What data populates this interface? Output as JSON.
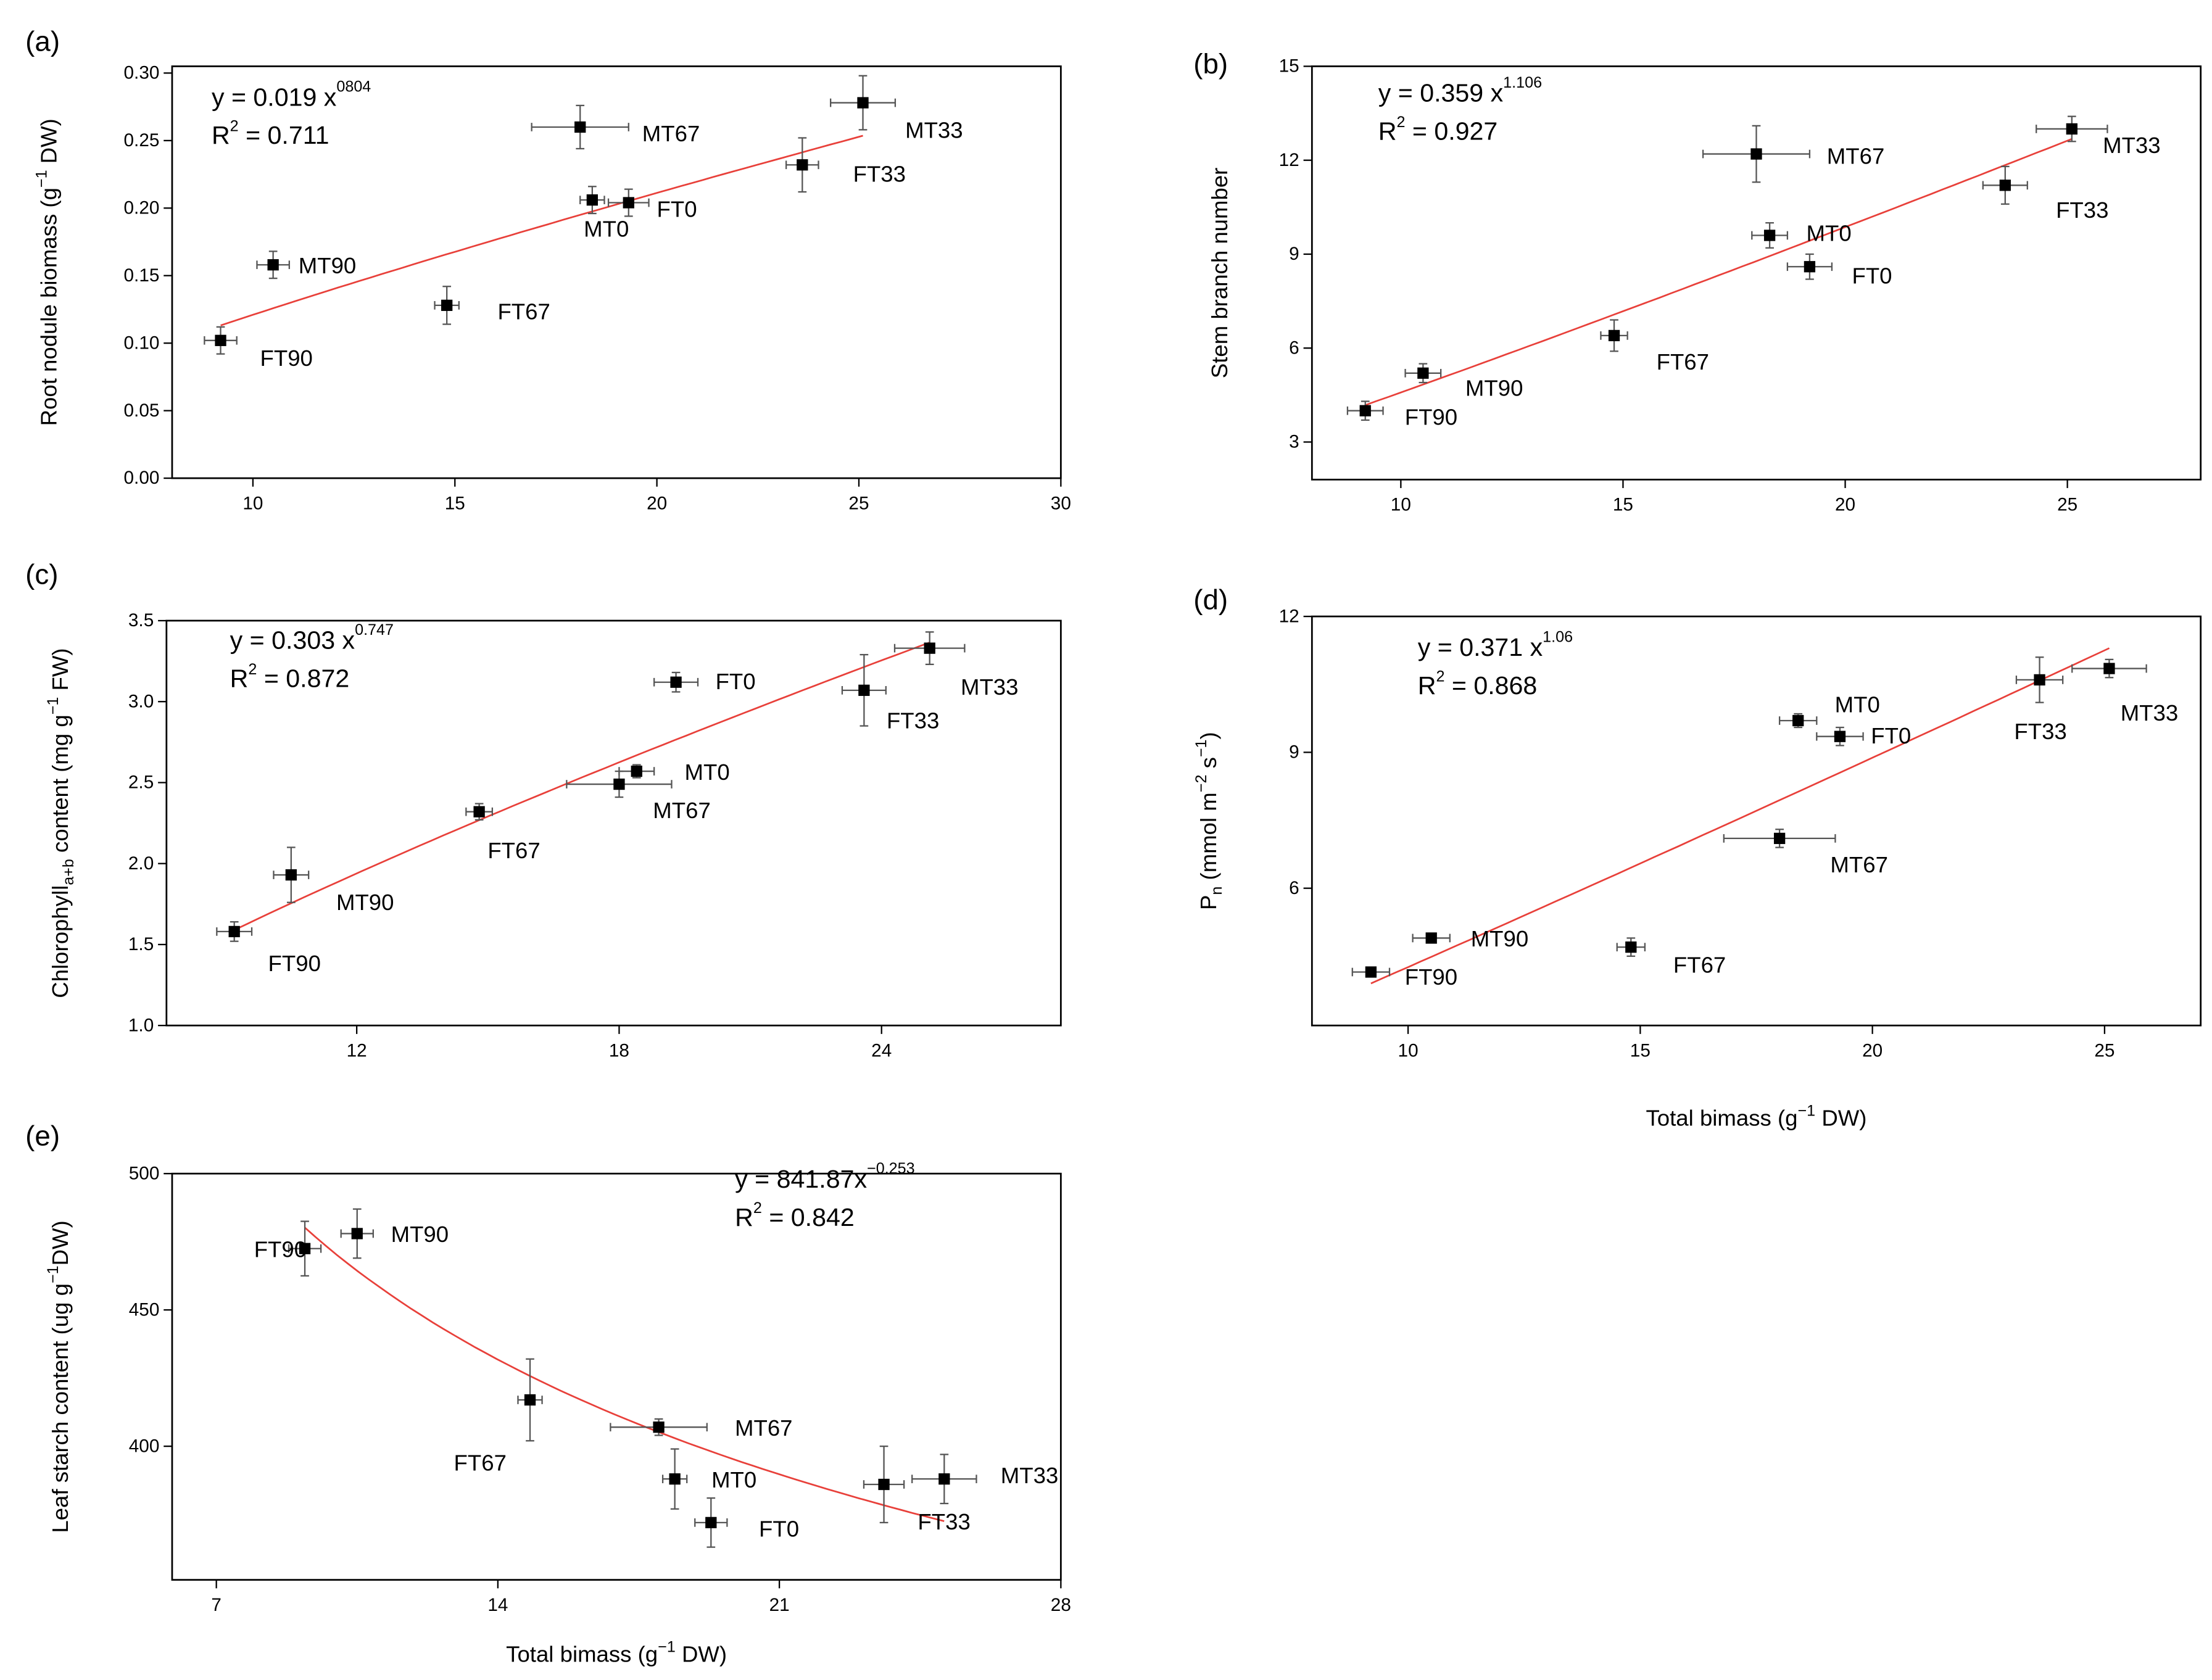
{
  "chart_data": [
    {
      "type": "scatter",
      "panel": "(a)",
      "xlabel": "",
      "ylabel": {
        "main": "Root nodule biomass (g",
        "sup": "−1",
        "tail": " DW)"
      },
      "xlim": [
        8,
        30
      ],
      "ylim": [
        0,
        0.305
      ],
      "xticks": [
        10,
        15,
        20,
        25,
        30
      ],
      "yticks": [
        0,
        0.05,
        0.1,
        0.15,
        0.2,
        0.25,
        0.3
      ],
      "ydec": 2,
      "equation": {
        "main": "y = 0.019 x",
        "exp": "0804",
        "r2": "= 0.711",
        "coef": 0.019,
        "power": 0.804
      },
      "points": [
        {
          "label": "FT90",
          "x": 9.2,
          "y": 0.102,
          "xerr": 0.4,
          "yerr": 0.01
        },
        {
          "label": "MT90",
          "x": 10.5,
          "y": 0.158,
          "xerr": 0.4,
          "yerr": 0.01
        },
        {
          "label": "FT67",
          "x": 14.8,
          "y": 0.128,
          "xerr": 0.3,
          "yerr": 0.014
        },
        {
          "label": "MT67",
          "x": 18.1,
          "y": 0.26,
          "xerr": 1.2,
          "yerr": 0.016
        },
        {
          "label": "MT0",
          "x": 18.4,
          "y": 0.206,
          "xerr": 0.3,
          "yerr": 0.01
        },
        {
          "label": "FT0",
          "x": 19.3,
          "y": 0.204,
          "xerr": 0.5,
          "yerr": 0.01
        },
        {
          "label": "FT33",
          "x": 23.6,
          "y": 0.232,
          "xerr": 0.4,
          "yerr": 0.02
        },
        {
          "label": "MT33",
          "x": 25.1,
          "y": 0.278,
          "xerr": 0.8,
          "yerr": 0.02
        }
      ]
    },
    {
      "type": "scatter",
      "panel": "(b)",
      "xlabel": "",
      "ylabel": {
        "main": "Stem branch number",
        "sup": "",
        "tail": ""
      },
      "xlim": [
        8,
        28
      ],
      "ylim": [
        1.8,
        15
      ],
      "xticks": [
        10,
        15,
        20,
        25
      ],
      "yticks": [
        3,
        6,
        9,
        12,
        15
      ],
      "ydec": 0,
      "equation": {
        "main": "y = 0.359 x",
        "exp": "1.106",
        "r2": "= 0.927",
        "coef": 0.359,
        "power": 1.106
      },
      "points": [
        {
          "label": "FT90",
          "x": 9.2,
          "y": 4.0,
          "xerr": 0.4,
          "yerr": 0.3
        },
        {
          "label": "MT90",
          "x": 10.5,
          "y": 5.2,
          "xerr": 0.4,
          "yerr": 0.3
        },
        {
          "label": "FT67",
          "x": 14.8,
          "y": 6.4,
          "xerr": 0.3,
          "yerr": 0.5
        },
        {
          "label": "MT67",
          "x": 18.0,
          "y": 12.2,
          "xerr": 1.2,
          "yerr": 0.9
        },
        {
          "label": "MT0",
          "x": 18.3,
          "y": 9.6,
          "xerr": 0.4,
          "yerr": 0.4
        },
        {
          "label": "FT0",
          "x": 19.2,
          "y": 8.6,
          "xerr": 0.5,
          "yerr": 0.4
        },
        {
          "label": "FT33",
          "x": 23.6,
          "y": 11.2,
          "xerr": 0.5,
          "yerr": 0.6
        },
        {
          "label": "MT33",
          "x": 25.1,
          "y": 13.0,
          "xerr": 0.8,
          "yerr": 0.4
        }
      ]
    },
    {
      "type": "scatter",
      "panel": "(c)",
      "xlabel": "",
      "ylabel": {
        "main": "Chlorophyll",
        "sub": "a+b",
        "tail": " content (mg g",
        "sup": "−1",
        "tail2": " FW)"
      },
      "xlim": [
        7.65,
        28.1
      ],
      "ylim": [
        1.0,
        3.5
      ],
      "xticks": [
        12,
        18,
        24
      ],
      "yticks": [
        1.0,
        1.5,
        2.0,
        2.5,
        3.0,
        3.5
      ],
      "ydec": 1,
      "equation": {
        "main": "y = 0.303 x",
        "exp": "0.747",
        "r2": "= 0.872",
        "coef": 0.303,
        "power": 0.747
      },
      "points": [
        {
          "label": "FT90",
          "x": 9.2,
          "y": 1.58,
          "xerr": 0.4,
          "yerr": 0.06
        },
        {
          "label": "MT90",
          "x": 10.5,
          "y": 1.93,
          "xerr": 0.4,
          "yerr": 0.17
        },
        {
          "label": "FT67",
          "x": 14.8,
          "y": 2.32,
          "xerr": 0.3,
          "yerr": 0.05
        },
        {
          "label": "MT67",
          "x": 18.0,
          "y": 2.49,
          "xerr": 1.2,
          "yerr": 0.08
        },
        {
          "label": "MT0",
          "x": 18.4,
          "y": 2.57,
          "xerr": 0.4,
          "yerr": 0.04
        },
        {
          "label": "FT0",
          "x": 19.3,
          "y": 3.12,
          "xerr": 0.5,
          "yerr": 0.06
        },
        {
          "label": "FT33",
          "x": 23.6,
          "y": 3.07,
          "xerr": 0.5,
          "yerr": 0.22
        },
        {
          "label": "MT33",
          "x": 25.1,
          "y": 3.33,
          "xerr": 0.8,
          "yerr": 0.1
        }
      ]
    },
    {
      "type": "scatter",
      "panel": "(d)",
      "xlabel": {
        "main": "Total bimass (g",
        "sup": "−1",
        "tail": " DW)"
      },
      "ylabel": {
        "main": "P",
        "sub": "n",
        "tail": " (mmol m",
        "sup": "−2",
        "tail2": " s",
        "sup2": "−1",
        "tail3": ")"
      },
      "xlim": [
        7.93,
        27.07
      ],
      "ylim": [
        2.97,
        12
      ],
      "xticks": [
        10,
        15,
        20,
        25
      ],
      "yticks": [
        6,
        9,
        12
      ],
      "ydec": 0,
      "equation": {
        "main": "y = 0.371 x",
        "exp": "1.06",
        "r2": "= 0.868",
        "coef": 0.371,
        "power": 1.06
      },
      "points": [
        {
          "label": "FT90",
          "x": 9.2,
          "y": 4.15,
          "xerr": 0.4,
          "yerr": 0.1
        },
        {
          "label": "MT90",
          "x": 10.5,
          "y": 4.9,
          "xerr": 0.4,
          "yerr": 0.1
        },
        {
          "label": "FT67",
          "x": 14.8,
          "y": 4.7,
          "xerr": 0.3,
          "yerr": 0.2
        },
        {
          "label": "MT67",
          "x": 18.0,
          "y": 7.1,
          "xerr": 1.2,
          "yerr": 0.2
        },
        {
          "label": "MT0",
          "x": 18.4,
          "y": 9.7,
          "xerr": 0.4,
          "yerr": 0.15
        },
        {
          "label": "FT0",
          "x": 19.3,
          "y": 9.35,
          "xerr": 0.5,
          "yerr": 0.2
        },
        {
          "label": "FT33",
          "x": 23.6,
          "y": 10.6,
          "xerr": 0.5,
          "yerr": 0.5
        },
        {
          "label": "MT33",
          "x": 25.1,
          "y": 10.85,
          "xerr": 0.8,
          "yerr": 0.2
        }
      ]
    },
    {
      "type": "scatter",
      "panel": "(e)",
      "xlabel": {
        "main": "Total bimass (g",
        "sup": "−1",
        "tail": " DW)"
      },
      "ylabel": {
        "main": "Leaf starch content (ug g",
        "sup": "−1",
        "tail": "DW)"
      },
      "xlim": [
        5.9,
        28
      ],
      "ylim": [
        351,
        500
      ],
      "xticks": [
        7,
        14,
        21,
        28
      ],
      "yticks": [
        400,
        450,
        500
      ],
      "ydec": 0,
      "equation": {
        "main": "y = 841.87x",
        "exp": "−0.253",
        "r2": "= 0.842",
        "coef": 841.87,
        "power": -0.253
      },
      "points": [
        {
          "label": "FT90",
          "x": 9.2,
          "y": 472.5,
          "xerr": 0.4,
          "yerr": 10
        },
        {
          "label": "MT90",
          "x": 10.5,
          "y": 478,
          "xerr": 0.4,
          "yerr": 9
        },
        {
          "label": "FT67",
          "x": 14.8,
          "y": 417,
          "xerr": 0.3,
          "yerr": 15
        },
        {
          "label": "MT67",
          "x": 18.0,
          "y": 407,
          "xerr": 1.2,
          "yerr": 3
        },
        {
          "label": "MT0",
          "x": 18.4,
          "y": 388,
          "xerr": 0.3,
          "yerr": 11
        },
        {
          "label": "FT0",
          "x": 19.3,
          "y": 372,
          "xerr": 0.4,
          "yerr": 9
        },
        {
          "label": "FT33",
          "x": 23.6,
          "y": 386,
          "xerr": 0.5,
          "yerr": 14
        },
        {
          "label": "MT33",
          "x": 25.1,
          "y": 388,
          "xerr": 0.8,
          "yerr": 9
        }
      ]
    }
  ],
  "colors": {
    "fit_line": "#e8403a",
    "points": "#000000"
  }
}
